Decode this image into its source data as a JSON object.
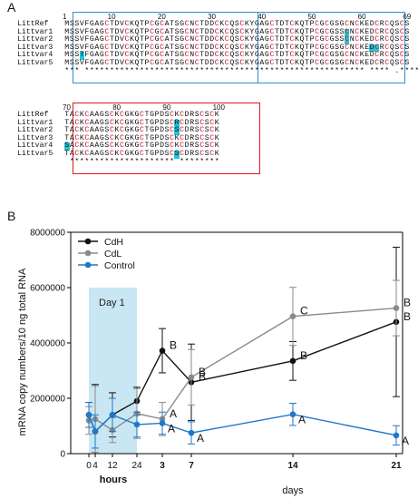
{
  "panel_a": {
    "label": "A",
    "block1": {
      "ruler": [
        "1",
        "10",
        "20",
        "30",
        "40",
        "50",
        "60",
        "69"
      ],
      "rows": [
        {
          "name": "LittRef",
          "seq": "MSSVFGAGCTDVCKQTPCGCATSGCNCTDDCKCQSCKYGAGCTDTCKQTPCGCGSGCNCKEDCRCQSCS",
          "hl": []
        },
        {
          "name": "Littvar1",
          "seq": "MSSVFGAGCTDVCKQTPCGCATSGCNCTDDCKCQSCKYGAGCTDTCKQTPCGCGSSCNCKEDCRCQSCS",
          "hl": [
            56
          ]
        },
        {
          "name": "Littvar2",
          "seq": "MSSVFGAGCTDVCKQTPCGCATSGCNCTDDCKCQSCKYGAGCTDTCKQTPCGCGSSCNCKEDCRCQSCS",
          "hl": [
            56
          ]
        },
        {
          "name": "Littvar3",
          "seq": "MSSVFGAGCTDVCKQTPCGCATSGCNCTDDCKCQSCKYGAGCTDTCKQTPCGCGSGCNCKEDCRCQSCS",
          "hl": [
            61,
            62
          ]
        },
        {
          "name": "Littvar4",
          "seq": "MSSTFGAGCTDVCKQTPCGCATSGCNCTDDCKCQSCKYGAGCTDTCKQTPCGCGSGCNCKEDCRCQSCS",
          "hl": [
            3
          ]
        },
        {
          "name": "Littvar5",
          "seq": "MSSVFGAGCTDVCKQTPCGCATSGCNCTDDCKCQSCKYGAGCTDTCKQTPCGCGSGCNCKEDCRCQSCS",
          "hl": []
        }
      ],
      "consensus": "*** ******************************************************** **** .*******"
    },
    "block2": {
      "ruler": [
        "70",
        "80",
        "90",
        "100"
      ],
      "rows": [
        {
          "name": "LittRef",
          "seq": "TACKCAAGSCKCGKGCTGPDSCKCDRSCSCK",
          "hl": []
        },
        {
          "name": "Littvar1",
          "seq": "TACKCAAGSCKCGKGCTGPDSCRCDRSCSCK",
          "hl": [
            22
          ]
        },
        {
          "name": "Littvar2",
          "seq": "TACKCAAGSCKCGKGCTGPDSCSCDRSCSCK",
          "hl": [
            22
          ]
        },
        {
          "name": "Littvar3",
          "seq": "TACKCAAGSCKCGKGCTGPDSCKCDRSCSCK",
          "hl": []
        },
        {
          "name": "Littvar4",
          "seq": "SACKCAAGSCKCGKGCTGPDSCKCDRSCSCK",
          "hl": [
            0
          ]
        },
        {
          "name": "Littvar5",
          "seq": "TACKCAAGSCKCGKGCTGPDSCSCDRSCSCK",
          "hl": [
            22
          ]
        }
      ],
      "consensus": " ********************* ********"
    },
    "colors": {
      "cysteine": "#c8102e",
      "highlight": "#22c8d8",
      "box_blue": "#2b8fd6",
      "box_red": "#e01818"
    }
  },
  "panel_b": {
    "label": "B",
    "day1_label": "Day 1",
    "hours_label": "hours",
    "days_label": "days",
    "colors": {
      "CdH": "#111111",
      "CdL": "#8a8a8a",
      "Control": "#1f78c8",
      "day1_shade": "#bfe3f0"
    }
  },
  "chart_data": {
    "type": "line",
    "title": "",
    "xlabel": "hours / days",
    "ylabel": "mRNA copy numbers/10 ng total RNA",
    "ylim": [
      0,
      8000000
    ],
    "yticks": [
      "0",
      "2000000",
      "4000000",
      "6000000",
      "8000000"
    ],
    "xticks": [
      "0",
      "4",
      "12",
      "24",
      "3",
      "7",
      "14",
      "21"
    ],
    "x": [
      "0 h",
      "4 h",
      "12 h",
      "24 h",
      "3 d",
      "7 d",
      "14 d",
      "21 d"
    ],
    "legend": "top-left",
    "series": [
      {
        "name": "CdH",
        "values": [
          1400000,
          800000,
          1400000,
          1900000,
          3720000,
          2580000,
          3350000,
          4760000
        ],
        "errors": [
          450000,
          1700000,
          800000,
          500000,
          800000,
          1380000,
          700000,
          2700000
        ],
        "letters": [
          "",
          "",
          "",
          "",
          "B",
          "B",
          "B",
          "B"
        ]
      },
      {
        "name": "CdL",
        "values": [
          1200000,
          1250000,
          850000,
          1450000,
          1250000,
          2760000,
          4960000,
          5260000
        ],
        "errors": [
          500000,
          1200000,
          450000,
          900000,
          600000,
          1000000,
          1050000,
          1000000
        ],
        "letters": [
          "",
          "",
          "",
          "",
          "A",
          "B",
          "C",
          "B"
        ]
      },
      {
        "name": "Control",
        "values": [
          1400000,
          800000,
          1400000,
          1050000,
          1100000,
          750000,
          1420000,
          660000
        ],
        "errors": [
          450000,
          600000,
          600000,
          450000,
          400000,
          400000,
          400000,
          350000
        ],
        "letters": [
          "",
          "",
          "",
          "",
          "A",
          "A",
          "A",
          "A"
        ]
      }
    ]
  }
}
